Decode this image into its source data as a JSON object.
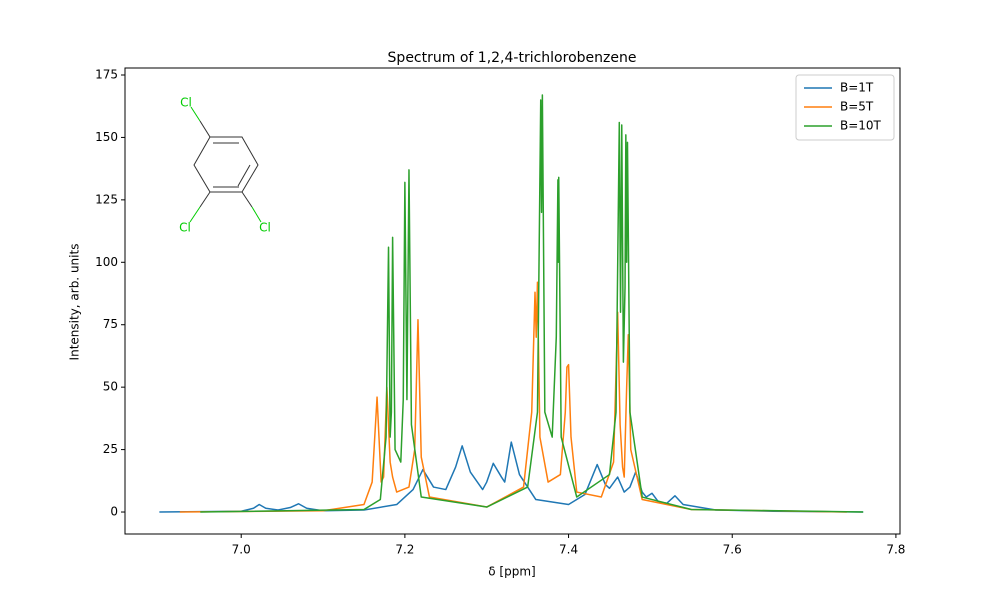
{
  "chart_data": {
    "type": "line",
    "title": "Spectrum of 1,2,4-trichlorobenzene",
    "xlabel": "δ [ppm]",
    "ylabel": "Intensity, arb. units",
    "inset_labels": [
      "Cl",
      "Cl",
      "Cl"
    ],
    "xlim": [
      6.858,
      7.805
    ],
    "ylim": [
      -8.8,
      177.8
    ],
    "xticks": [
      {
        "value": 7,
        "label": "7.0"
      },
      7.2,
      7.4,
      7.6,
      7.8
    ],
    "yticks": [
      0,
      25,
      50,
      75,
      100,
      125,
      150,
      175
    ],
    "legend": "upper right",
    "grid": false,
    "series": [
      {
        "name": "B=1T",
        "color": "#1f77b4",
        "x": [
          6.9,
          7.0,
          7.015,
          7.022,
          7.03,
          7.045,
          7.06,
          7.07,
          7.08,
          7.1,
          7.15,
          7.19,
          7.21,
          7.222,
          7.235,
          7.25,
          7.262,
          7.27,
          7.28,
          7.295,
          7.3,
          7.308,
          7.318,
          7.322,
          7.33,
          7.34,
          7.36,
          7.4,
          7.42,
          7.435,
          7.445,
          7.45,
          7.46,
          7.468,
          7.475,
          7.482,
          7.49,
          7.495,
          7.502,
          7.51,
          7.52,
          7.53,
          7.54,
          7.58,
          7.65,
          7.76
        ],
        "values": [
          0,
          0.3,
          1.5,
          3,
          1.5,
          0.8,
          1.8,
          3.3,
          1.5,
          0.5,
          0.8,
          3,
          9,
          17,
          10,
          9,
          18,
          26.5,
          16,
          9,
          12,
          19.5,
          14,
          12,
          28,
          15,
          5,
          3,
          7,
          19,
          11,
          9.5,
          14,
          8,
          10,
          16,
          8,
          6,
          7.5,
          4,
          3.5,
          6.5,
          3,
          0.8,
          0.3,
          0
        ]
      },
      {
        "name": "B=5T",
        "color": "#ff7f0e",
        "x": [
          6.925,
          7.1,
          7.15,
          7.16,
          7.166,
          7.171,
          7.174,
          7.178,
          7.182,
          7.185,
          7.19,
          7.205,
          7.212,
          7.216,
          7.22,
          7.23,
          7.3,
          7.345,
          7.355,
          7.359,
          7.3605,
          7.362,
          7.365,
          7.375,
          7.39,
          7.396,
          7.398,
          7.4,
          7.403,
          7.41,
          7.44,
          7.455,
          7.46,
          7.463,
          7.466,
          7.468,
          7.471,
          7.473,
          7.476,
          7.49,
          7.55,
          7.74
        ],
        "values": [
          0,
          0.5,
          3,
          12,
          46,
          12,
          14,
          50,
          20,
          14,
          8,
          10,
          25,
          77,
          22,
          6,
          2,
          10,
          40,
          88,
          70,
          92,
          30,
          12,
          15,
          40,
          58,
          59,
          30,
          8,
          6,
          20,
          80,
          35,
          18,
          14,
          50,
          71,
          25,
          5,
          1,
          0
        ]
      },
      {
        "name": "B=10T",
        "color": "#2ca02c",
        "x": [
          6.95,
          7.15,
          7.17,
          7.177,
          7.18,
          7.182,
          7.1835,
          7.185,
          7.188,
          7.195,
          7.198,
          7.2,
          7.2025,
          7.205,
          7.208,
          7.22,
          7.3,
          7.35,
          7.362,
          7.366,
          7.367,
          7.368,
          7.371,
          7.38,
          7.385,
          7.387,
          7.3875,
          7.388,
          7.391,
          7.41,
          7.45,
          7.458,
          7.462,
          7.4635,
          7.465,
          7.467,
          7.469,
          7.47,
          7.471,
          7.472,
          7.475,
          7.49,
          7.55,
          7.76
        ],
        "values": [
          0,
          1,
          5,
          30,
          106,
          30,
          40,
          110,
          25,
          20,
          45,
          132,
          45,
          137,
          35,
          6,
          2,
          10,
          40,
          165,
          120,
          167,
          40,
          30,
          70,
          133,
          100,
          134,
          30,
          6,
          15,
          40,
          156,
          80,
          155,
          60,
          90,
          151,
          100,
          148,
          40,
          6,
          1,
          0
        ]
      }
    ]
  }
}
